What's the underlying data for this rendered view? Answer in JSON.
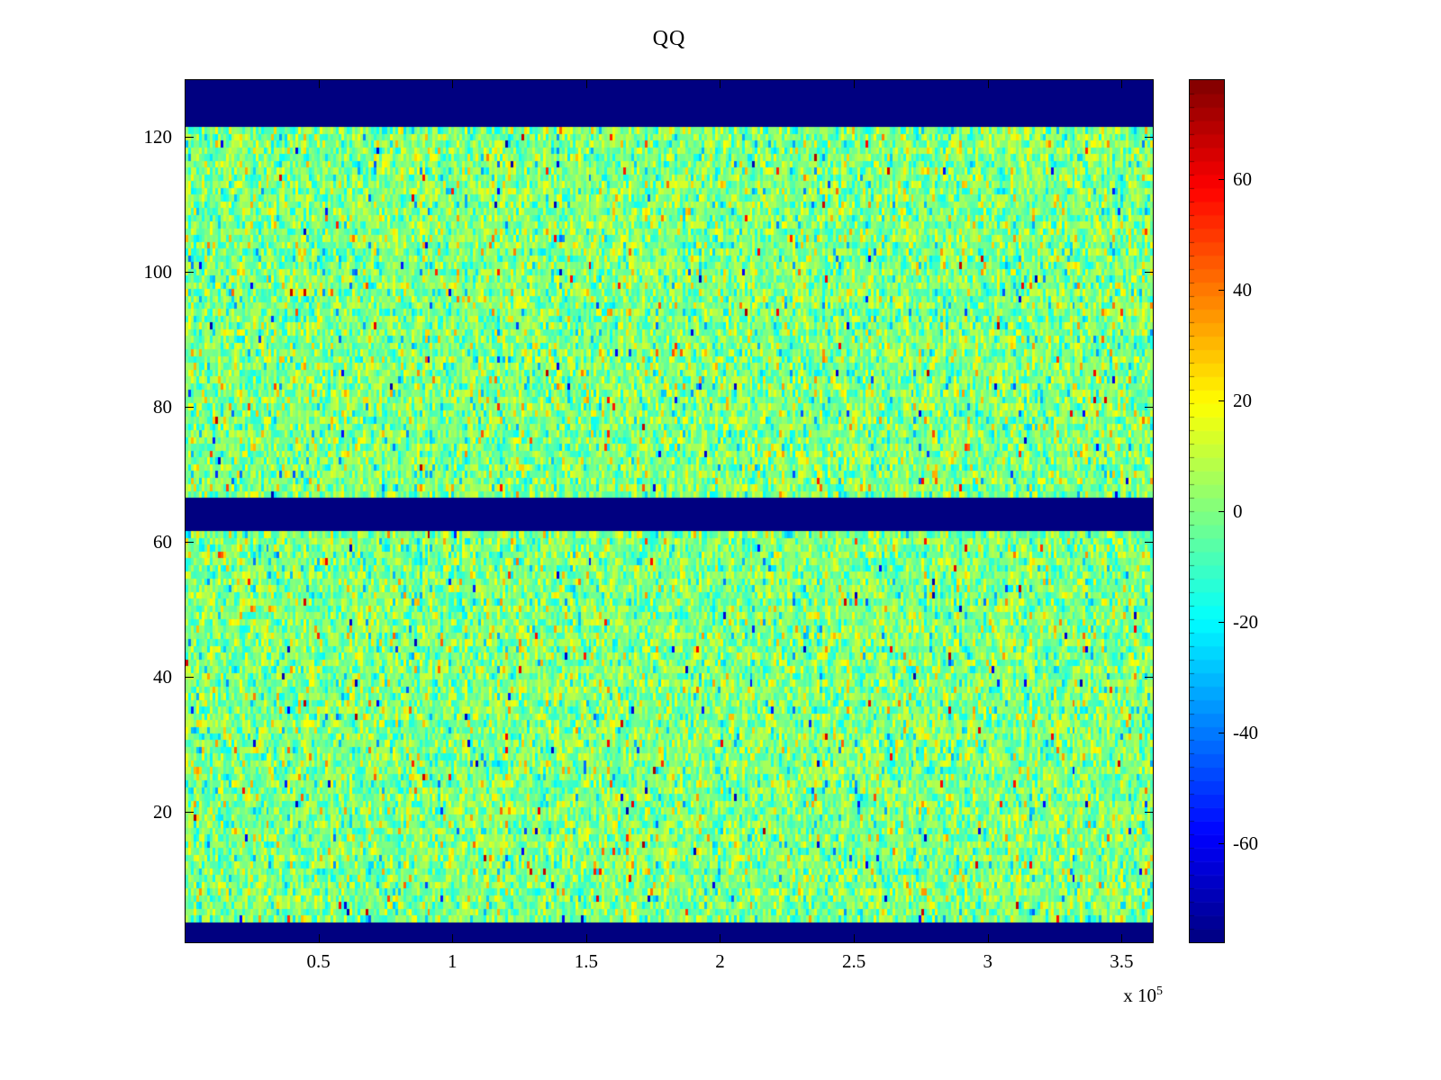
{
  "figure": {
    "background": "#ffffff"
  },
  "chart_data": {
    "type": "heatmap",
    "title": "QQ",
    "colormap": "jet",
    "x_axis": {
      "range": [
        0,
        362000
      ],
      "tick_values": [
        50000,
        100000,
        150000,
        200000,
        250000,
        300000,
        350000
      ],
      "tick_labels": [
        "0.5",
        "1",
        "1.5",
        "2",
        "2.5",
        "3",
        "3.5"
      ],
      "exponent_base": "x 10",
      "exponent_power": "5"
    },
    "y_axis": {
      "range": [
        0.5,
        128.5
      ],
      "tick_values": [
        20,
        40,
        60,
        80,
        100,
        120
      ],
      "tick_labels": [
        "20",
        "40",
        "60",
        "80",
        "100",
        "120"
      ]
    },
    "colorbar": {
      "range": [
        -78,
        78
      ],
      "tick_values": [
        60,
        40,
        20,
        0,
        -20,
        -40,
        -60
      ],
      "tick_labels": [
        "60",
        "40",
        "20",
        "0",
        "-20",
        "-40",
        "-60"
      ],
      "segments": 64,
      "min_color": "#00008f",
      "max_color": "#7f0000"
    },
    "grid": {
      "rows": 128,
      "cols": 360
    },
    "background_bands": [
      {
        "y_from": 121.5,
        "y_to": 128.5
      },
      {
        "y_from": 61.5,
        "y_to": 66.5
      },
      {
        "y_from": 0.5,
        "y_to": 3.5
      }
    ],
    "band_value": -78,
    "noise": {
      "mean": 0,
      "std": 12,
      "spike_prob": 0.015,
      "spike_min": 20,
      "spike_max": 72,
      "seed": 1337
    }
  }
}
